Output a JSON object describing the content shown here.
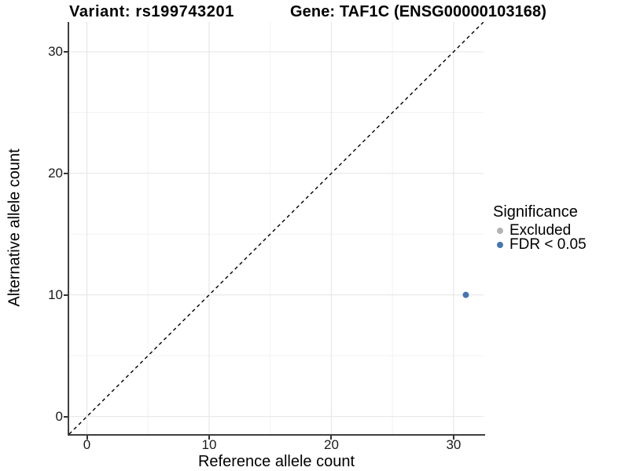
{
  "figure": {
    "titles": {
      "variant": "Variant: rs199743201",
      "gene": "Gene: TAF1C (ENSG00000103168)"
    }
  },
  "axes": {
    "x": {
      "label": "Reference allele count"
    },
    "y": {
      "label": "Alternative allele count"
    }
  },
  "legend": {
    "title": "Significance",
    "items": [
      {
        "label": "Excluded",
        "color": "#b3b3b3"
      },
      {
        "label": "FDR < 0.05",
        "color": "#4575b4"
      }
    ]
  },
  "chart_data": {
    "type": "scatter",
    "title_left": "Variant: rs199743201",
    "title_right": "Gene: TAF1C (ENSG00000103168)",
    "xlabel": "Reference allele count",
    "ylabel": "Alternative allele count",
    "xlim": [
      -1.45,
      32.45
    ],
    "ylim": [
      -1.45,
      32.45
    ],
    "x_ticks": [
      0,
      10,
      20,
      30
    ],
    "y_ticks": [
      0,
      10,
      20,
      30
    ],
    "minor_gridlines": [
      5,
      15,
      25
    ],
    "grid": "major and minor, light gray on white",
    "legend_position": "right",
    "identity_line": {
      "style": "dashed",
      "from": [
        -1.45,
        -1.45
      ],
      "to": [
        32.45,
        32.45
      ],
      "color": "#000000"
    },
    "series": [
      {
        "name": "Excluded",
        "color": "#b3b3b3",
        "points": []
      },
      {
        "name": "FDR < 0.05",
        "color": "#4575b4",
        "points": [
          [
            31,
            10
          ]
        ]
      }
    ],
    "point_radius_px": 4,
    "colors": {
      "major_grid": "#e7e7e7",
      "minor_grid": "#f2f2f2",
      "axis_line": "#3f3f3f",
      "significant_point": "#4575b4",
      "excluded_point": "#b3b3b3"
    }
  }
}
